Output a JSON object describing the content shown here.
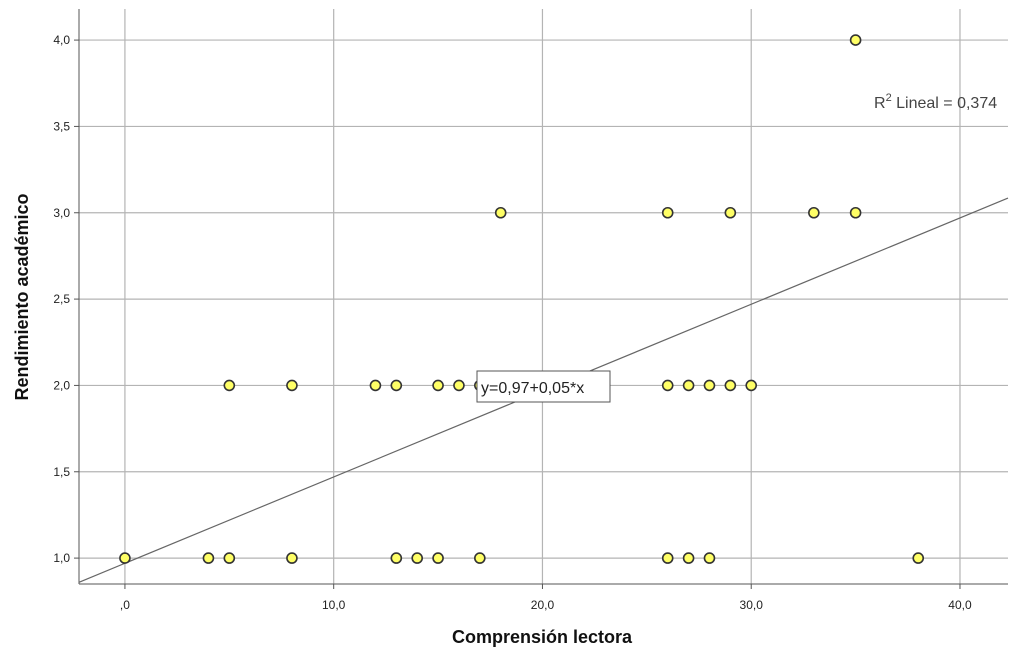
{
  "chart_data": {
    "type": "scatter",
    "xlabel": "Comprensión lectora",
    "ylabel": "Rendimiento académico",
    "xlim": [
      -2.2,
      42.3
    ],
    "ylim": [
      0.85,
      4.18
    ],
    "x_ticks": [
      0,
      10,
      20,
      30,
      40
    ],
    "x_tick_labels": [
      ",0",
      "10,0",
      "20,0",
      "30,0",
      "40,0"
    ],
    "y_ticks": [
      1.0,
      1.5,
      2.0,
      2.5,
      3.0,
      3.5,
      4.0
    ],
    "y_tick_labels": [
      "1,0",
      "1,5",
      "2,0",
      "2,5",
      "3,0",
      "3,5",
      "4,0"
    ],
    "grid": true,
    "points": [
      {
        "x": 0,
        "y": 1
      },
      {
        "x": 4,
        "y": 1
      },
      {
        "x": 5,
        "y": 1
      },
      {
        "x": 8,
        "y": 1
      },
      {
        "x": 13,
        "y": 1
      },
      {
        "x": 14,
        "y": 1
      },
      {
        "x": 15,
        "y": 1
      },
      {
        "x": 17,
        "y": 1
      },
      {
        "x": 26,
        "y": 1
      },
      {
        "x": 27,
        "y": 1
      },
      {
        "x": 28,
        "y": 1
      },
      {
        "x": 38,
        "y": 1
      },
      {
        "x": 5,
        "y": 2
      },
      {
        "x": 8,
        "y": 2
      },
      {
        "x": 12,
        "y": 2
      },
      {
        "x": 13,
        "y": 2
      },
      {
        "x": 15,
        "y": 2
      },
      {
        "x": 16,
        "y": 2
      },
      {
        "x": 17,
        "y": 2
      },
      {
        "x": 26,
        "y": 2
      },
      {
        "x": 27,
        "y": 2
      },
      {
        "x": 28,
        "y": 2
      },
      {
        "x": 29,
        "y": 2
      },
      {
        "x": 30,
        "y": 2
      },
      {
        "x": 18,
        "y": 3
      },
      {
        "x": 26,
        "y": 3
      },
      {
        "x": 29,
        "y": 3
      },
      {
        "x": 33,
        "y": 3
      },
      {
        "x": 35,
        "y": 3
      },
      {
        "x": 35,
        "y": 4
      }
    ],
    "fit_line": {
      "intercept": 0.97,
      "slope": 0.05
    },
    "r2_label": "R",
    "r2_label_sup": "2",
    "r2_label_rest": " Lineal = 0,374",
    "equation_label": "y=0,97+0,05*x",
    "colors": {
      "point_fill": "#ffff66",
      "point_stroke": "#333333",
      "grid": "#b4b4b4",
      "axis": "#555555",
      "fit_line": "#666666",
      "background": "#ffffff"
    }
  }
}
